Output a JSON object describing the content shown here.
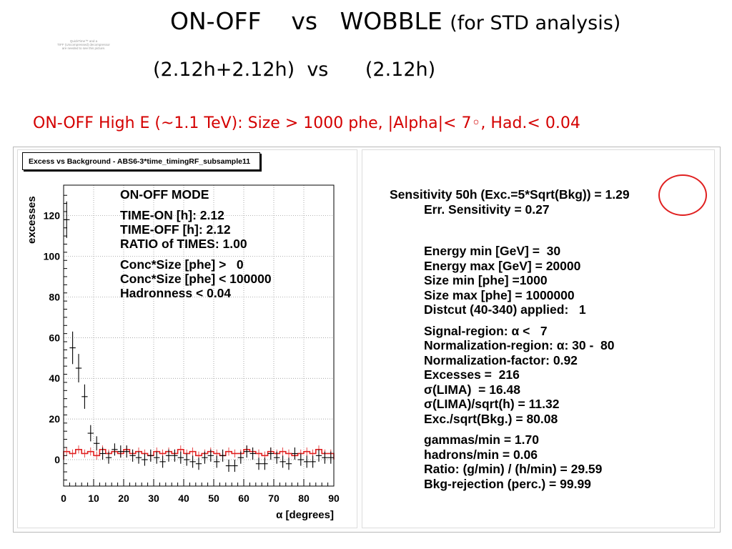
{
  "header": {
    "title_main": "ON-OFF    vs   WOBBLE",
    "title_suffix": "(for STD analysis)",
    "title_line2": "(2.12h+2.12h)  vs      (2.12h)",
    "subtitle": "ON-OFF  High E (~1.1 TeV): Size > 1000 phe, |Alpha|< 7◦, Had.< 0.04"
  },
  "quicktime_notice": [
    "QuickTime™ and a",
    "TIFF (Uncompressed) decompressor",
    "are needed to see this picture."
  ],
  "colors": {
    "signal": "#000000",
    "background": "#e02020",
    "annotation": "#e02020",
    "subtitle": "#d40000"
  },
  "mode_box": {
    "lines": [
      "ON-OFF MODE",
      "TIME-ON [h]: 2.12",
      "TIME-OFF [h]: 2.12",
      "RATIO of TIMES: 1.00",
      "Conc*Size [phe] >   0",
      "Conc*Size [phe] < 100000",
      "Hadronness < 0.04"
    ]
  },
  "results": {
    "sensitivity": "Sensitivity 50h (Exc.=5*Sqrt(Bkg)) = 1.29",
    "err_sensitivity": "Err. Sensitivity = 0.27",
    "block1": [
      "Energy min [GeV] =  30",
      "Energy max [GeV] = 20000",
      "Size min [phe] =1000",
      "Size max [phe] = 1000000",
      "Distcut (40-340) applied:   1"
    ],
    "block2": [
      "Signal-region: α <   7",
      "Normalization-region: α: 30 -  80",
      "Normalization-factor: 0.92",
      "Excesses =  216",
      "σ(LIMA)  = 16.48",
      "σ(LIMA)/sqrt(h) = 11.32",
      "Exc./sqrt(Bkg.) = 80.08"
    ],
    "block3": [
      "gammas/min = 1.70",
      "hadrons/min = 0.06",
      "Ratio: (g/min) / (h/min) = 29.59",
      "Bkg-rejection (perc.) = 99.99"
    ]
  },
  "chart_data": {
    "type": "histogram",
    "title": "Excess vs Background - ABS6-3*time_timingRF_subsample11",
    "xlabel": "α [degrees]",
    "ylabel": "excesses",
    "xlim": [
      0,
      90
    ],
    "ylim": [
      -13,
      135
    ],
    "xticks": [
      0,
      10,
      20,
      30,
      40,
      50,
      60,
      70,
      80,
      90
    ],
    "yticks": [
      0,
      20,
      40,
      60,
      80,
      100,
      120
    ],
    "grid": true,
    "bin_width": 2,
    "series": [
      {
        "name": "excess",
        "style": "error-bars",
        "x": [
          1,
          3,
          5,
          7,
          9,
          11,
          13,
          15,
          17,
          19,
          21,
          23,
          25,
          27,
          29,
          31,
          33,
          35,
          37,
          39,
          41,
          43,
          45,
          47,
          49,
          51,
          53,
          55,
          57,
          59,
          61,
          63,
          65,
          67,
          69,
          71,
          73,
          75,
          77,
          79,
          81,
          83,
          85,
          87,
          89
        ],
        "y": [
          118,
          55,
          45,
          31,
          13,
          8,
          3,
          1,
          5,
          4,
          4,
          2,
          1,
          0,
          2,
          1,
          -1,
          2,
          2,
          1,
          0,
          -1,
          -2,
          1,
          2,
          -1,
          2,
          -3,
          -3,
          1,
          4,
          3,
          -2,
          -2,
          3,
          1,
          -1,
          -2,
          3,
          0,
          -1,
          -1,
          2,
          1,
          1
        ],
        "err": [
          9,
          8,
          7,
          6,
          4,
          3.5,
          3,
          3,
          3,
          3,
          3,
          3,
          3,
          3,
          3,
          3,
          3,
          3,
          3,
          3,
          3,
          3,
          3,
          3,
          3,
          3,
          3,
          3,
          3,
          3,
          3,
          3,
          3,
          3,
          3,
          3,
          3,
          3,
          3,
          3,
          3,
          3,
          3,
          3,
          3
        ]
      },
      {
        "name": "background",
        "style": "step",
        "y": [
          4,
          3,
          5,
          3,
          4,
          2,
          5,
          3,
          4,
          3,
          5,
          3,
          4,
          3,
          2,
          4,
          3,
          4,
          3,
          5,
          3,
          4,
          2,
          3,
          4,
          3,
          2,
          4,
          3,
          3,
          5,
          4,
          3,
          2,
          4,
          3,
          4,
          3,
          2,
          3,
          4,
          3,
          5,
          3,
          3
        ]
      }
    ]
  }
}
